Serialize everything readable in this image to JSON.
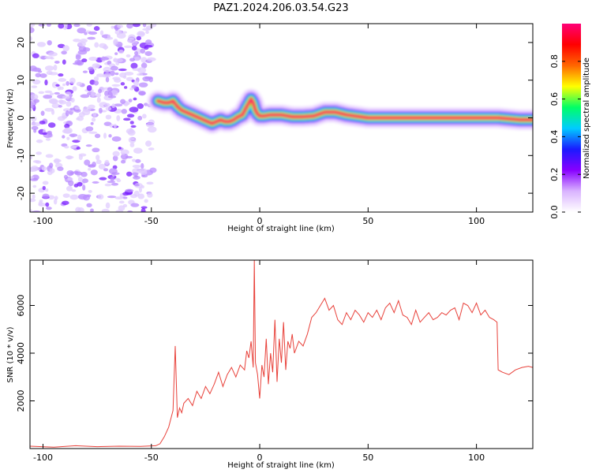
{
  "figure_title": "PAZ1.2024.206.03.54.G23",
  "chart_data": [
    {
      "type": "heatmap",
      "title": "",
      "xlabel": "Height of straight line (km)",
      "ylabel": "Frequency (Hz)",
      "xlim": [
        -106,
        126
      ],
      "ylim": [
        -25,
        25
      ],
      "xticks": [
        -100,
        -50,
        0,
        50,
        100
      ],
      "yticks": [
        -20,
        -10,
        0,
        10,
        20
      ],
      "colorbar": {
        "label": "Normalized spectral amplitude",
        "range": [
          0,
          1
        ],
        "ticks": [
          0.0,
          0.2,
          0.4,
          0.6,
          0.8
        ],
        "tick_labels": [
          "0.0",
          "0.2",
          "0.4",
          "0.6",
          "0.8"
        ],
        "colormap": [
          "#ffffff",
          "#d9b3ff",
          "#8800ff",
          "#1a1aff",
          "#00ccff",
          "#00ff66",
          "#ffff00",
          "#ff6600",
          "#ff0000",
          "#ff0077"
        ]
      },
      "ridge": {
        "x": [
          -47,
          -44,
          -42,
          -40,
          -38,
          -36,
          -34,
          -32,
          -30,
          -28,
          -26,
          -24,
          -22,
          -20,
          -18,
          -16,
          -14,
          -12,
          -10,
          -8,
          -6,
          -4,
          -3,
          -2,
          -1,
          0,
          2,
          5,
          10,
          15,
          20,
          25,
          30,
          35,
          40,
          50,
          60,
          70,
          80,
          90,
          100,
          110,
          120,
          126
        ],
        "y": [
          4.5,
          4,
          4,
          4.5,
          3,
          2,
          1.5,
          1,
          0.5,
          0,
          -0.5,
          -1,
          -1.5,
          -1,
          -0.5,
          -1,
          -1,
          -0.5,
          0.3,
          0.8,
          3,
          5,
          4,
          2,
          1,
          0.5,
          0.5,
          0.8,
          0.8,
          0.3,
          0.3,
          0.5,
          1.5,
          1.5,
          0.8,
          0,
          0,
          0,
          0,
          0,
          0,
          0,
          -0.5,
          -0.5
        ]
      },
      "noise_region": [
        -106,
        -49
      ]
    },
    {
      "type": "line",
      "title": "",
      "xlabel": "Height of straight line (km)",
      "ylabel": "SNR (10 * v/v)",
      "xlim": [
        -106,
        126
      ],
      "ylim": [
        0,
        7900
      ],
      "xticks": [
        -100,
        -50,
        0,
        50,
        100
      ],
      "yticks": [
        2000,
        4000,
        6000
      ],
      "series": [
        {
          "color": "#e8413a",
          "x": [
            -106,
            -95,
            -85,
            -75,
            -65,
            -55,
            -48,
            -46,
            -44,
            -42,
            -40,
            -39,
            -38,
            -37,
            -36,
            -35,
            -33,
            -31,
            -29,
            -27,
            -25,
            -23,
            -21,
            -19,
            -17,
            -15,
            -13,
            -11,
            -9,
            -7,
            -6,
            -5,
            -4,
            -3,
            -2.5,
            -2,
            -1,
            0,
            1,
            2,
            3,
            4,
            5,
            6,
            7,
            8,
            9,
            10,
            11,
            12,
            13,
            14,
            15,
            16,
            18,
            20,
            22,
            24,
            26,
            28,
            30,
            32,
            34,
            36,
            38,
            40,
            42,
            44,
            46,
            48,
            50,
            52,
            54,
            56,
            58,
            60,
            62,
            64,
            66,
            68,
            70,
            72,
            74,
            76,
            78,
            80,
            82,
            84,
            86,
            88,
            90,
            92,
            94,
            96,
            98,
            100,
            102,
            104,
            106,
            108,
            109.5,
            110,
            112,
            115,
            118,
            121,
            124,
            126
          ],
          "y": [
            100,
            60,
            120,
            80,
            100,
            90,
            120,
            200,
            500,
            900,
            1600,
            4300,
            1300,
            1700,
            1500,
            1900,
            2100,
            1800,
            2400,
            2100,
            2600,
            2300,
            2700,
            3200,
            2600,
            3100,
            3400,
            3000,
            3500,
            3300,
            4100,
            3800,
            4500,
            3400,
            7900,
            3600,
            3100,
            2100,
            3500,
            3000,
            4600,
            2700,
            4000,
            3200,
            5400,
            2800,
            4600,
            3600,
            5300,
            3300,
            4500,
            4200,
            4800,
            4000,
            4500,
            4300,
            4800,
            5500,
            5700,
            6000,
            6300,
            5800,
            6000,
            5400,
            5200,
            5700,
            5400,
            5800,
            5600,
            5300,
            5700,
            5500,
            5800,
            5400,
            5900,
            6100,
            5700,
            6200,
            5600,
            5500,
            5200,
            5800,
            5300,
            5500,
            5700,
            5400,
            5500,
            5700,
            5600,
            5800,
            5900,
            5400,
            6100,
            6000,
            5700,
            6100,
            5600,
            5800,
            5500,
            5400,
            5300,
            3300,
            3200,
            3100,
            3300,
            3400,
            3450,
            3400
          ]
        }
      ]
    }
  ]
}
